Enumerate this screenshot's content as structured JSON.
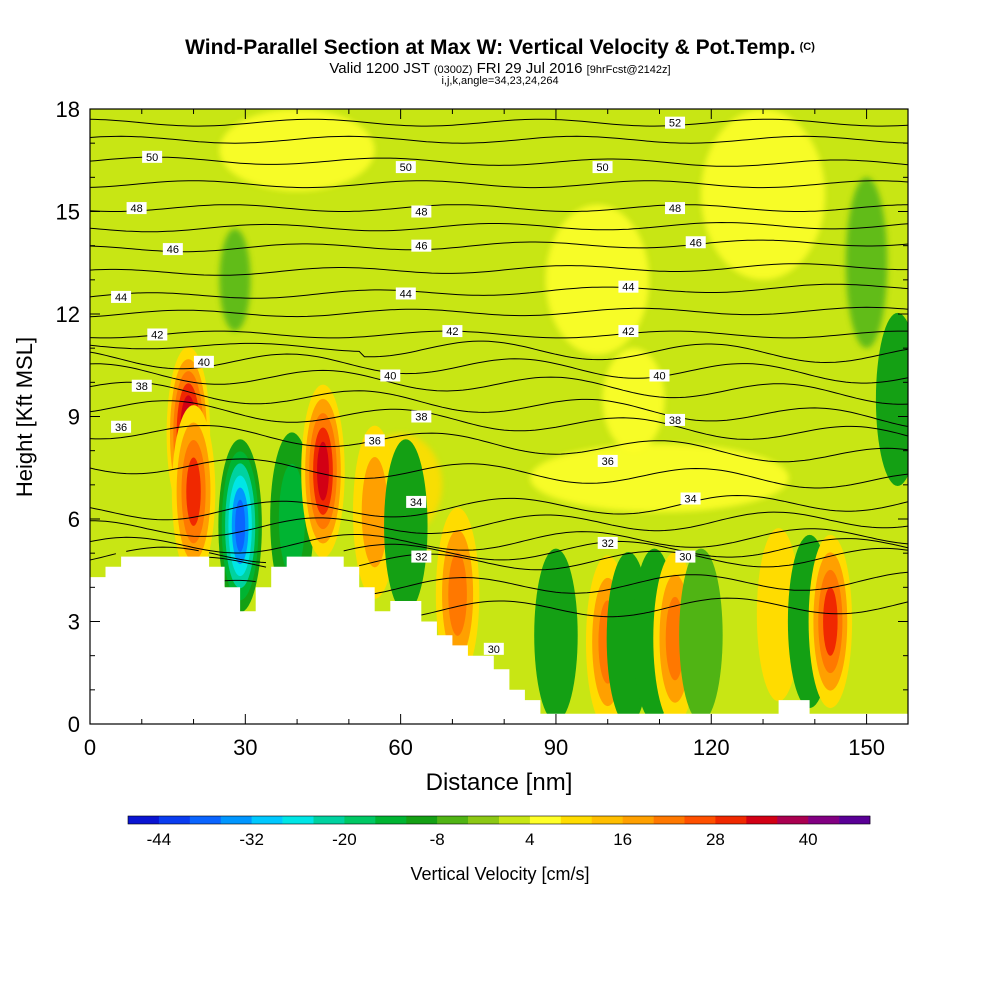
{
  "title": {
    "main": "Wind-Parallel Section at Max W: Vertical Velocity & Pot.Temp.",
    "copyright": "(C)",
    "valid_prefix": "Valid 1200 JST",
    "valid_utc": "(0300Z)",
    "valid_date": "FRI 29 Jul 2016",
    "forecast": "[9hrFcst@2142z]",
    "indices": "i,j,k,angle=34,23,24,264"
  },
  "chart_data": {
    "type": "heatmap",
    "xlabel": "Distance [nm]",
    "ylabel": "Height [Kft MSL]",
    "xlim": [
      0,
      158
    ],
    "ylim": [
      0,
      18
    ],
    "xticks": [
      0,
      30,
      60,
      90,
      120,
      150
    ],
    "yticks": [
      0,
      3,
      6,
      9,
      12,
      15,
      18
    ],
    "colorbar": {
      "label": "Vertical Velocity [cm/s]",
      "tick_labels": [
        "-44",
        "-32",
        "-20",
        "-8",
        "4",
        "16",
        "28",
        "40"
      ],
      "tick_values": [
        -44,
        -32,
        -20,
        -8,
        4,
        16,
        28,
        40
      ],
      "range": [
        -48,
        48
      ],
      "colors": [
        "#0a14d2",
        "#0a3cf0",
        "#0a64ff",
        "#0096ff",
        "#00c8ff",
        "#00e6e6",
        "#00d2a0",
        "#00c864",
        "#00b432",
        "#14a014",
        "#50b414",
        "#8cc814",
        "#c8e614",
        "#ffff28",
        "#ffdc00",
        "#ffbe00",
        "#ffa000",
        "#ff7800",
        "#ff5000",
        "#f02800",
        "#d20014",
        "#aa0050",
        "#820082",
        "#5a0096"
      ]
    },
    "terrain_kft": [
      [
        0,
        4.3
      ],
      [
        3,
        4.3
      ],
      [
        3,
        4.6
      ],
      [
        6,
        4.6
      ],
      [
        6,
        4.9
      ],
      [
        23,
        4.9
      ],
      [
        23,
        4.6
      ],
      [
        26,
        4.6
      ],
      [
        26,
        4.0
      ],
      [
        29,
        4.0
      ],
      [
        29,
        3.3
      ],
      [
        32,
        3.3
      ],
      [
        32,
        4.0
      ],
      [
        35,
        4.0
      ],
      [
        35,
        4.6
      ],
      [
        38,
        4.6
      ],
      [
        38,
        4.9
      ],
      [
        49,
        4.9
      ],
      [
        49,
        4.6
      ],
      [
        52,
        4.6
      ],
      [
        52,
        4.0
      ],
      [
        55,
        4.0
      ],
      [
        55,
        3.3
      ],
      [
        58,
        3.3
      ],
      [
        58,
        3.6
      ],
      [
        64,
        3.6
      ],
      [
        64,
        3.0
      ],
      [
        67,
        3.0
      ],
      [
        67,
        2.6
      ],
      [
        70,
        2.6
      ],
      [
        70,
        2.3
      ],
      [
        73,
        2.3
      ],
      [
        73,
        2.0
      ],
      [
        78,
        2.0
      ],
      [
        78,
        1.6
      ],
      [
        81,
        1.6
      ],
      [
        81,
        1.0
      ],
      [
        84,
        1.0
      ],
      [
        84,
        0.7
      ],
      [
        87,
        0.7
      ],
      [
        87,
        0.3
      ],
      [
        133,
        0.3
      ],
      [
        133,
        0.7
      ],
      [
        139,
        0.7
      ],
      [
        139,
        0.3
      ],
      [
        158,
        0.3
      ]
    ],
    "vertical_velocity_cells_cm_s": [
      {
        "x": 19,
        "z": 8.5,
        "w": 45
      },
      {
        "x": 20,
        "z": 6.8,
        "w": 30
      },
      {
        "x": 29,
        "z": 5.8,
        "w": -40
      },
      {
        "x": 39,
        "z": 6.0,
        "w": -20
      },
      {
        "x": 45,
        "z": 7.4,
        "w": 35
      },
      {
        "x": 55,
        "z": 6.2,
        "w": 16
      },
      {
        "x": 61,
        "z": 5.8,
        "w": -14
      },
      {
        "x": 71,
        "z": 3.8,
        "w": 26
      },
      {
        "x": 90,
        "z": 2.6,
        "w": -14
      },
      {
        "x": 100,
        "z": 2.4,
        "w": 26
      },
      {
        "x": 104,
        "z": 2.5,
        "w": -14
      },
      {
        "x": 109,
        "z": 2.6,
        "w": -14
      },
      {
        "x": 113,
        "z": 2.5,
        "w": 26
      },
      {
        "x": 118,
        "z": 2.6,
        "w": -8
      },
      {
        "x": 133,
        "z": 3.2,
        "w": 14
      },
      {
        "x": 139,
        "z": 3.0,
        "w": -12
      },
      {
        "x": 143,
        "z": 3.0,
        "w": 32
      },
      {
        "x": 156,
        "z": 9.5,
        "w": -14
      }
    ],
    "pot_temp_labels": [
      {
        "value": "52",
        "x": 113,
        "z": 17.6
      },
      {
        "value": "50",
        "x": 12,
        "z": 16.6
      },
      {
        "value": "50",
        "x": 61,
        "z": 16.3
      },
      {
        "value": "50",
        "x": 99,
        "z": 16.3
      },
      {
        "value": "48",
        "x": 9,
        "z": 15.1
      },
      {
        "value": "48",
        "x": 64,
        "z": 15.0
      },
      {
        "value": "48",
        "x": 113,
        "z": 15.1
      },
      {
        "value": "46",
        "x": 16,
        "z": 13.9
      },
      {
        "value": "46",
        "x": 64,
        "z": 14.0
      },
      {
        "value": "46",
        "x": 117,
        "z": 14.1
      },
      {
        "value": "44",
        "x": 6,
        "z": 12.5
      },
      {
        "value": "44",
        "x": 61,
        "z": 12.6
      },
      {
        "value": "44",
        "x": 104,
        "z": 12.8
      },
      {
        "value": "42",
        "x": 13,
        "z": 11.4
      },
      {
        "value": "42",
        "x": 70,
        "z": 11.5
      },
      {
        "value": "42",
        "x": 104,
        "z": 11.5
      },
      {
        "value": "40",
        "x": 22,
        "z": 10.6
      },
      {
        "value": "40",
        "x": 58,
        "z": 10.2
      },
      {
        "value": "40",
        "x": 110,
        "z": 10.2
      },
      {
        "value": "38",
        "x": 10,
        "z": 9.9
      },
      {
        "value": "38",
        "x": 64,
        "z": 9.0
      },
      {
        "value": "38",
        "x": 113,
        "z": 8.9
      },
      {
        "value": "36",
        "x": 6,
        "z": 8.7
      },
      {
        "value": "36",
        "x": 55,
        "z": 8.3
      },
      {
        "value": "36",
        "x": 100,
        "z": 7.7
      },
      {
        "value": "34",
        "x": 63,
        "z": 6.5
      },
      {
        "value": "34",
        "x": 116,
        "z": 6.6
      },
      {
        "value": "32",
        "x": 64,
        "z": 4.9
      },
      {
        "value": "32",
        "x": 100,
        "z": 5.3
      },
      {
        "value": "30",
        "x": 115,
        "z": 4.9
      },
      {
        "value": "30",
        "x": 78,
        "z": 2.2
      }
    ],
    "pot_temp_contours_kft": [
      {
        "level": 28,
        "z_left": null,
        "z_right": 3.5
      },
      {
        "level": 29,
        "z_left": null,
        "z_right": 4.2
      },
      {
        "level": 30,
        "z_left": null,
        "z_right": 4.9
      },
      {
        "level": 31,
        "z_left": null,
        "z_right": 5.2
      },
      {
        "level": 32,
        "z_left": null,
        "z_right": 5.5
      },
      {
        "level": 33,
        "z_left": null,
        "z_right": 6.0
      },
      {
        "level": 34,
        "z_left": null,
        "z_right": 6.5
      },
      {
        "level": 35,
        "z_left": 7.6,
        "z_right": 7.1
      },
      {
        "level": 36,
        "z_left": 8.6,
        "z_right": 7.8
      },
      {
        "level": 37,
        "z_left": 9.3,
        "z_right": 8.4
      },
      {
        "level": 38,
        "z_left": 9.8,
        "z_right": 8.9
      },
      {
        "level": 39,
        "z_left": 10.3,
        "z_right": 9.6
      },
      {
        "level": 40,
        "z_left": 10.7,
        "z_right": 10.2
      },
      {
        "level": 41,
        "z_left": 11.1,
        "z_right": 10.8
      },
      {
        "level": 42,
        "z_left": 11.4,
        "z_right": 11.4
      },
      {
        "level": 43,
        "z_left": 12.0,
        "z_right": 12.1
      },
      {
        "level": 44,
        "z_left": 12.5,
        "z_right": 12.8
      },
      {
        "level": 45,
        "z_left": 13.2,
        "z_right": 13.4
      },
      {
        "level": 46,
        "z_left": 13.9,
        "z_right": 14.1
      },
      {
        "level": 47,
        "z_left": 14.5,
        "z_right": 14.6
      },
      {
        "level": 48,
        "z_left": 15.1,
        "z_right": 15.1
      },
      {
        "level": 49,
        "z_left": 15.8,
        "z_right": 15.8
      },
      {
        "level": 50,
        "z_left": 16.5,
        "z_right": 16.4
      },
      {
        "level": 51,
        "z_left": 17.1,
        "z_right": 17.1
      },
      {
        "level": 52,
        "z_left": 17.6,
        "z_right": 17.6
      }
    ]
  }
}
